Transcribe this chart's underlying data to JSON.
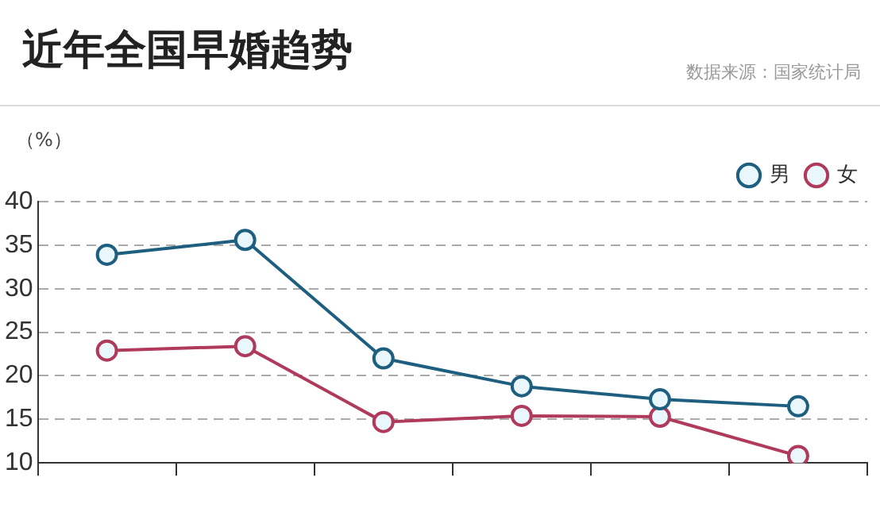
{
  "chart_data": {
    "type": "line",
    "title": "近年全国早婚趋势",
    "annotations": [
      "数据来源：国家统计局"
    ],
    "ylabel": "（%）",
    "categories": [
      null,
      null,
      null,
      null,
      null,
      null
    ],
    "series": [
      {
        "name": "男",
        "color": "#1e5f80",
        "values": [
          33.9,
          35.6,
          22.0,
          18.8,
          17.3,
          16.5
        ]
      },
      {
        "name": "女",
        "color": "#b03a5b",
        "values": [
          22.9,
          23.4,
          14.7,
          15.4,
          15.3,
          10.8
        ]
      }
    ],
    "ylim": [
      10,
      40
    ],
    "yticks": [
      10,
      15,
      20,
      25,
      30,
      35,
      40
    ],
    "grid": "y",
    "legend": "top right",
    "marker": "circle",
    "line_style": "solid"
  }
}
